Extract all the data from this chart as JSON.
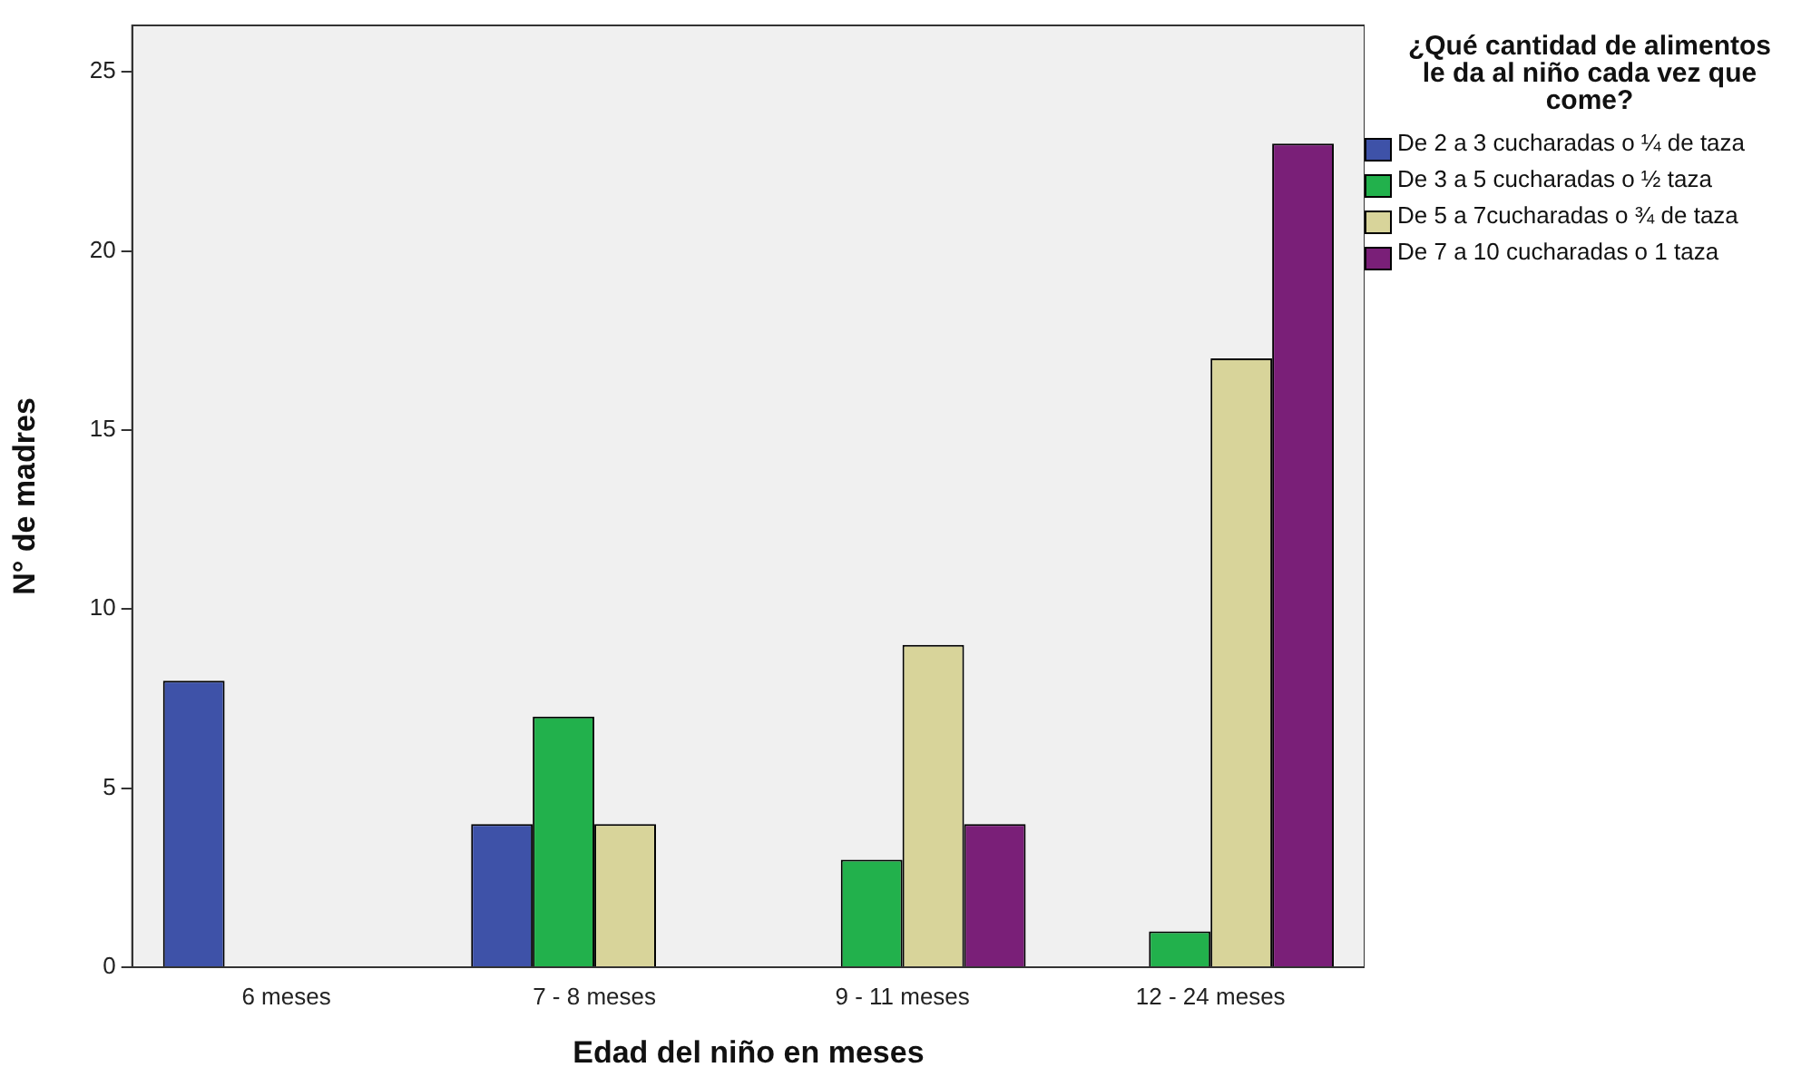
{
  "chart_data": {
    "type": "bar",
    "xlabel": "Edad del niño en meses",
    "ylabel": "N° de madres",
    "legend_title": "¿Qué cantidad de alimentos le da al niño cada vez que come?",
    "categories": [
      "6 meses",
      "7 - 8 meses",
      "9 - 11 meses",
      "12 - 24 meses"
    ],
    "series": [
      {
        "name": "De 2 a 3 cucharadas o ¼ de taza",
        "color": "#3e52a8",
        "values": [
          8,
          4,
          null,
          null
        ]
      },
      {
        "name": "De 3 a 5 cucharadas o ½ taza",
        "color": "#22b14c",
        "values": [
          null,
          7,
          3,
          1
        ]
      },
      {
        "name": "De 5 a 7cucharadas o ¾ de taza",
        "color": "#d8d49a",
        "values": [
          null,
          4,
          9,
          17
        ]
      },
      {
        "name": "De 7 a 10 cucharadas o 1 taza",
        "color": "#7a1f78",
        "values": [
          null,
          null,
          4,
          23
        ]
      }
    ],
    "ylim": [
      0,
      26.3
    ],
    "yticks": [
      0,
      5,
      10,
      15,
      20,
      25
    ],
    "grid": false,
    "legend": "right"
  }
}
